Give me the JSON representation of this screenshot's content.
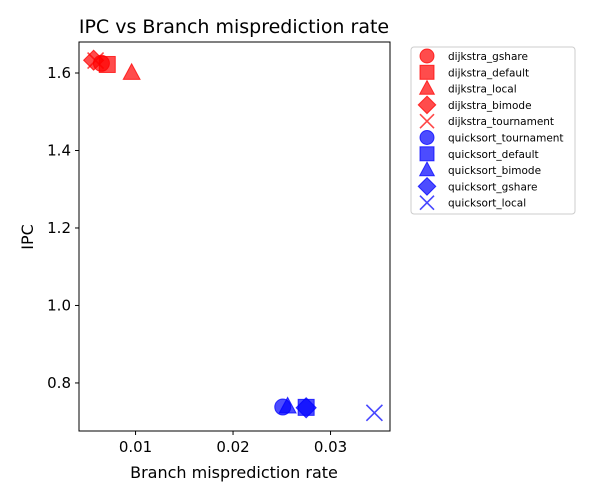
{
  "chart_data": {
    "type": "scatter",
    "title": "IPC vs Branch misprediction rate",
    "xlabel": "Branch misprediction rate",
    "ylabel": "IPC",
    "xlim": [
      0.0042,
      0.0361
    ],
    "ylim": [
      0.676,
      1.68
    ],
    "xticks": [
      {
        "value": 0.01,
        "label": "0.01"
      },
      {
        "value": 0.02,
        "label": "0.02"
      },
      {
        "value": 0.03,
        "label": "0.03"
      }
    ],
    "yticks": [
      {
        "value": 0.8,
        "label": "0.8"
      },
      {
        "value": 1.0,
        "label": "1.0"
      },
      {
        "value": 1.2,
        "label": "1.2"
      },
      {
        "value": 1.4,
        "label": "1.4"
      },
      {
        "value": 1.6,
        "label": "1.6"
      }
    ],
    "legend_position": "outside-top-right",
    "series": [
      {
        "name": "dijkstra_gshare",
        "color": "#ff0000",
        "marker": "circle",
        "x": 0.0065,
        "y": 1.625
      },
      {
        "name": "dijkstra_default",
        "color": "#ff0000",
        "marker": "square",
        "x": 0.0071,
        "y": 1.622
      },
      {
        "name": "dijkstra_local",
        "color": "#ff0000",
        "marker": "triangle",
        "x": 0.0096,
        "y": 1.6
      },
      {
        "name": "dijkstra_bimode",
        "color": "#ff0000",
        "marker": "diamond",
        "x": 0.0057,
        "y": 1.633
      },
      {
        "name": "dijkstra_tournament",
        "color": "#ff0000",
        "marker": "x",
        "x": 0.0059,
        "y": 1.632
      },
      {
        "name": "quicksort_tournament",
        "color": "#0000ff",
        "marker": "circle",
        "x": 0.0251,
        "y": 0.738
      },
      {
        "name": "quicksort_default",
        "color": "#0000ff",
        "marker": "square",
        "x": 0.0275,
        "y": 0.737
      },
      {
        "name": "quicksort_bimode",
        "color": "#0000ff",
        "marker": "triangle",
        "x": 0.0256,
        "y": 0.739
      },
      {
        "name": "quicksort_gshare",
        "color": "#0000ff",
        "marker": "diamond",
        "x": 0.0275,
        "y": 0.736
      },
      {
        "name": "quicksort_local",
        "color": "#0000ff",
        "marker": "x",
        "x": 0.0345,
        "y": 0.723
      }
    ]
  }
}
